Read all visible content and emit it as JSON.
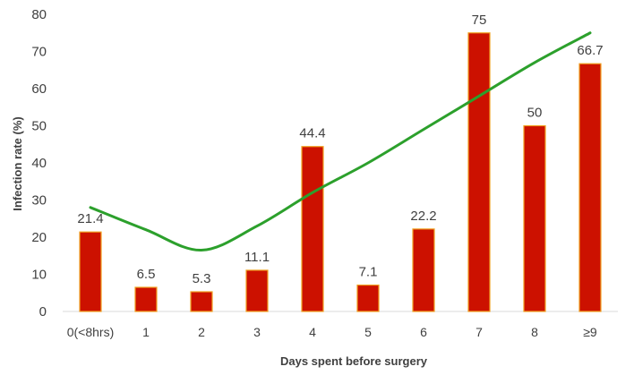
{
  "chart_data": {
    "type": "bar",
    "categories": [
      "0(<8hrs)",
      "1",
      "2",
      "3",
      "4",
      "5",
      "6",
      "7",
      "8",
      "≥9"
    ],
    "series": [
      {
        "values": [
          21.4,
          6.5,
          5.3,
          11.1,
          44.4,
          7.1,
          22.2,
          75,
          50,
          66.7
        ],
        "data_labels": [
          "21.4",
          "6.5",
          "5.3",
          "11.1",
          "44.4",
          "7.1",
          "22.2",
          "75",
          "50",
          "66.7"
        ],
        "color": "#cc1100",
        "edge_color": "#f0a020"
      }
    ],
    "trendline": {
      "type": "polynomial",
      "color": "#2ca02c",
      "points": [
        {
          "x": "0(<8hrs)",
          "y": 28
        },
        {
          "x": "1",
          "y": 22
        },
        {
          "x": "2",
          "y": 16.5
        },
        {
          "x": "3",
          "y": 23
        },
        {
          "x": "4",
          "y": 32
        },
        {
          "x": "5",
          "y": 40
        },
        {
          "x": "6",
          "y": 49
        },
        {
          "x": "7",
          "y": 58
        },
        {
          "x": "8",
          "y": 67
        },
        {
          "x": "≥9",
          "y": 75
        }
      ]
    },
    "xlabel": "Days spent before surgery",
    "ylabel": "Infection rate (%)",
    "ylim": [
      0,
      80
    ],
    "yticks": [
      0,
      10,
      20,
      30,
      40,
      50,
      60,
      70,
      80
    ],
    "grid": false,
    "legend": "none"
  }
}
